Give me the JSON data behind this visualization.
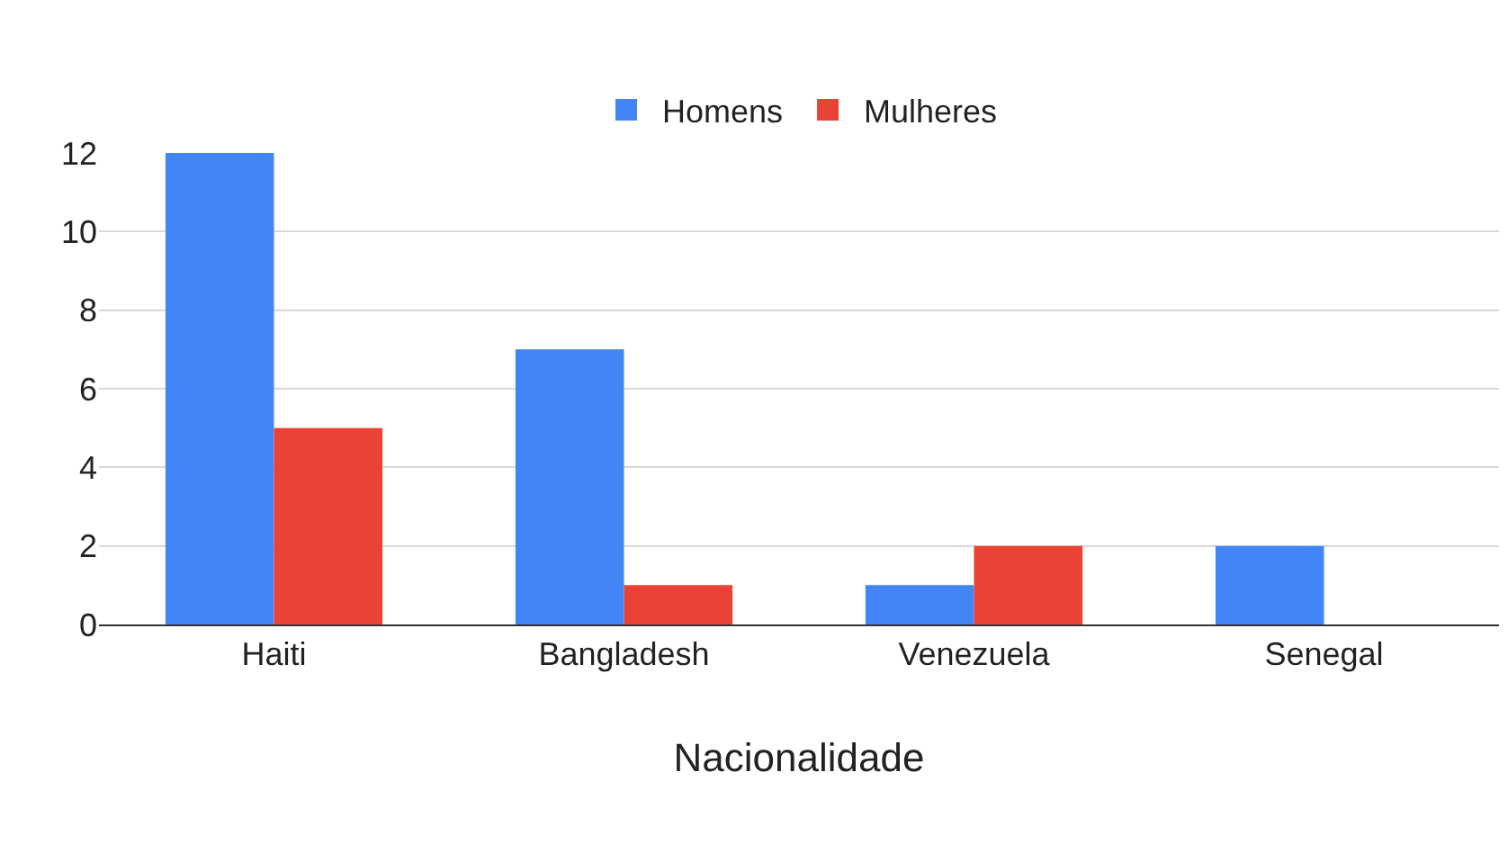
{
  "chart_data": {
    "type": "bar",
    "xlabel": "Nacionalidade",
    "categories": [
      "Haiti",
      "Bangladesh",
      "Venezuela",
      "Senegal"
    ],
    "series": [
      {
        "name": "Homens",
        "color": "#4285f4",
        "values": [
          12,
          7,
          1,
          2
        ]
      },
      {
        "name": "Mulheres",
        "color": "#ea4335",
        "values": [
          5,
          1,
          2,
          0
        ]
      }
    ],
    "ylim": [
      0,
      12
    ],
    "yticks": [
      0,
      2,
      4,
      6,
      8,
      10,
      12
    ],
    "grid": "y",
    "legend": "top"
  }
}
